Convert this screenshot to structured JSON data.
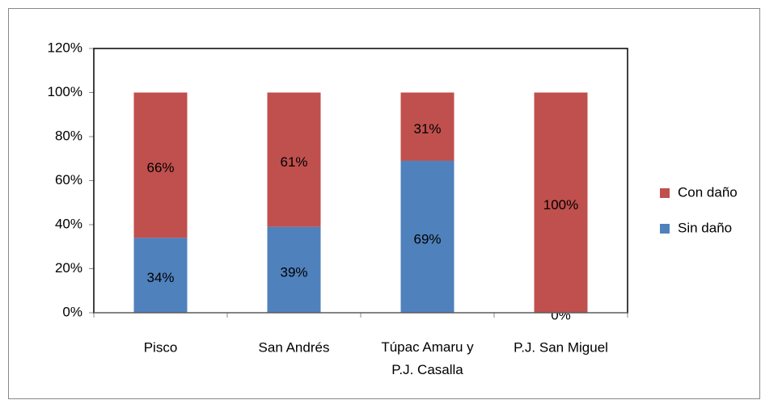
{
  "chart_data": {
    "type": "stacked_bar",
    "categories": [
      "Pisco",
      "San Andrés",
      "Túpac Amaru y P.J. Casalla",
      "P.J. San Miguel"
    ],
    "series": [
      {
        "name": "Sin daño",
        "color": "#4f81bd",
        "values": [
          34,
          39,
          69,
          0
        ],
        "value_labels": [
          "34%",
          "39%",
          "69%",
          "0%"
        ]
      },
      {
        "name": "Con daño",
        "color": "#c0504d",
        "values": [
          66,
          61,
          31,
          100
        ],
        "value_labels": [
          "66%",
          "61%",
          "31%",
          "100%"
        ]
      }
    ],
    "ylim": [
      0,
      120
    ],
    "yticks": [
      {
        "value": 0,
        "label": "0%"
      },
      {
        "value": 20,
        "label": "20%"
      },
      {
        "value": 40,
        "label": "40%"
      },
      {
        "value": 60,
        "label": "60%"
      },
      {
        "value": 80,
        "label": "80%"
      },
      {
        "value": 100,
        "label": "100%"
      },
      {
        "value": 120,
        "label": "120%"
      }
    ],
    "grid": false,
    "legend": "right"
  }
}
